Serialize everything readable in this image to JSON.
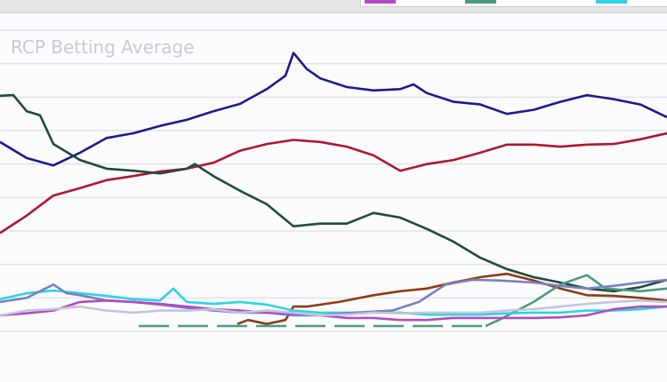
{
  "chart_data": {
    "type": "line",
    "title": "RCP Betting Average",
    "xlabel": "",
    "ylabel": "",
    "xlim": [
      0,
      250
    ],
    "ylim": [
      0,
      45
    ],
    "grid": true,
    "gridlines": [
      0,
      5,
      10,
      15,
      20,
      25,
      30,
      35,
      40,
      45
    ],
    "legend": {
      "placement": "top-right",
      "colors": [
        "#b04cc0",
        "#4a9a80",
        "#2ad4e4"
      ]
    },
    "series": [
      {
        "color": "#1b1b8c",
        "x": [
          0,
          10,
          20,
          30,
          40,
          50,
          60,
          70,
          80,
          90,
          100,
          107,
          110,
          115,
          120,
          130,
          140,
          150,
          155,
          160,
          170,
          180,
          190,
          200,
          210,
          220,
          230,
          240,
          250
        ],
        "y": [
          28.3,
          25.9,
          24.8,
          26.7,
          28.9,
          29.6,
          30.7,
          31.6,
          32.9,
          34.0,
          36.2,
          38.2,
          41.6,
          39.2,
          37.8,
          36.5,
          36.0,
          36.2,
          36.9,
          35.6,
          34.3,
          33.9,
          32.5,
          33.1,
          34.3,
          35.3,
          34.7,
          33.9,
          32.0
        ]
      },
      {
        "color": "#b3152f",
        "x": [
          0,
          10,
          20,
          30,
          40,
          50,
          60,
          70,
          80,
          90,
          100,
          110,
          120,
          130,
          140,
          150,
          160,
          170,
          180,
          190,
          200,
          210,
          220,
          230,
          240,
          250
        ],
        "y": [
          14.7,
          17.3,
          20.3,
          21.4,
          22.6,
          23.2,
          23.9,
          24.3,
          25.2,
          27.0,
          28.0,
          28.6,
          28.3,
          27.6,
          26.3,
          24.0,
          25.0,
          25.6,
          26.7,
          27.9,
          27.9,
          27.6,
          27.9,
          28.0,
          28.7,
          29.6
        ]
      },
      {
        "color": "#1f4b3b",
        "x": [
          0,
          5,
          10,
          15,
          20,
          30,
          40,
          50,
          60,
          70,
          73,
          80,
          90,
          100,
          110,
          120,
          130,
          140,
          150,
          160,
          170,
          180,
          190,
          200,
          210,
          220,
          230,
          240,
          250
        ],
        "y": [
          35.2,
          35.3,
          32.9,
          32.3,
          28.0,
          25.6,
          24.3,
          24.0,
          23.6,
          24.3,
          25.0,
          23.2,
          21.0,
          19.0,
          15.7,
          16.1,
          16.1,
          17.7,
          17.0,
          15.3,
          13.4,
          11.0,
          9.3,
          8.1,
          7.3,
          6.4,
          6.0,
          6.6,
          7.7
        ]
      },
      {
        "color": "#8c3b12",
        "x": [
          89,
          93,
          100,
          107,
          110,
          115,
          127,
          140,
          150,
          160,
          170,
          180,
          190,
          200,
          210,
          220,
          230,
          240,
          250
        ],
        "y": [
          1.1,
          1.7,
          1.1,
          1.7,
          3.7,
          3.7,
          4.4,
          5.4,
          6.0,
          6.4,
          7.3,
          8.1,
          8.6,
          7.6,
          6.4,
          5.4,
          5.3,
          5.0,
          4.6
        ]
      },
      {
        "color": "#4a9a80",
        "dashed_until": 182,
        "x": [
          52,
          182,
          187,
          200,
          210,
          220,
          227,
          240,
          250
        ],
        "y": [
          0.8,
          0.8,
          1.7,
          4.4,
          7.0,
          8.4,
          6.4,
          6.0,
          6.4
        ]
      },
      {
        "color": "#2ad4e4",
        "x": [
          0,
          10,
          20,
          30,
          40,
          50,
          60,
          65,
          70,
          80,
          90,
          100,
          110,
          120,
          130,
          140,
          150,
          160,
          170,
          180,
          190,
          200,
          210,
          220,
          230,
          240,
          250
        ],
        "y": [
          4.8,
          5.7,
          6.1,
          5.7,
          5.3,
          4.8,
          4.6,
          6.4,
          4.4,
          4.1,
          4.4,
          4.0,
          3.1,
          2.8,
          2.8,
          2.8,
          2.8,
          2.5,
          2.5,
          2.5,
          2.7,
          2.8,
          2.8,
          3.1,
          3.1,
          3.3,
          3.7
        ]
      },
      {
        "color": "#7a80c0",
        "x": [
          0,
          10,
          20,
          25,
          30,
          40,
          50,
          60,
          70,
          80,
          90,
          100,
          110,
          120,
          133,
          147,
          157,
          167,
          177,
          187,
          200,
          210,
          220,
          230,
          240,
          250
        ],
        "y": [
          4.4,
          5.0,
          7.0,
          5.7,
          5.4,
          4.6,
          4.4,
          4.0,
          3.5,
          3.1,
          2.8,
          2.8,
          2.4,
          2.4,
          2.8,
          3.1,
          4.4,
          7.0,
          7.7,
          7.6,
          7.3,
          6.8,
          6.4,
          6.8,
          7.3,
          7.7
        ]
      },
      {
        "color": "#b04cc0",
        "x": [
          0,
          10,
          20,
          30,
          40,
          50,
          60,
          70,
          80,
          90,
          100,
          110,
          120,
          130,
          140,
          150,
          160,
          170,
          180,
          190,
          200,
          210,
          220,
          230,
          240,
          250
        ],
        "y": [
          2.4,
          2.7,
          3.1,
          4.4,
          4.6,
          4.4,
          4.1,
          3.7,
          3.3,
          3.1,
          2.8,
          2.7,
          2.4,
          2.0,
          2.0,
          1.7,
          1.7,
          2.0,
          2.0,
          2.0,
          2.0,
          2.1,
          2.4,
          3.3,
          3.7,
          3.7
        ]
      },
      {
        "color": "#c4c4de",
        "x": [
          0,
          10,
          20,
          30,
          40,
          50,
          60,
          70,
          80,
          90,
          100,
          110,
          120,
          130,
          140,
          150,
          160,
          170,
          180,
          190,
          200,
          210,
          220,
          230,
          240,
          250
        ],
        "y": [
          2.4,
          3.1,
          3.3,
          3.7,
          3.1,
          2.8,
          3.1,
          3.1,
          3.3,
          2.8,
          3.1,
          2.8,
          2.4,
          2.5,
          2.8,
          2.7,
          2.8,
          2.8,
          2.8,
          3.1,
          3.3,
          3.7,
          4.1,
          4.4,
          4.6,
          4.4
        ]
      }
    ]
  }
}
